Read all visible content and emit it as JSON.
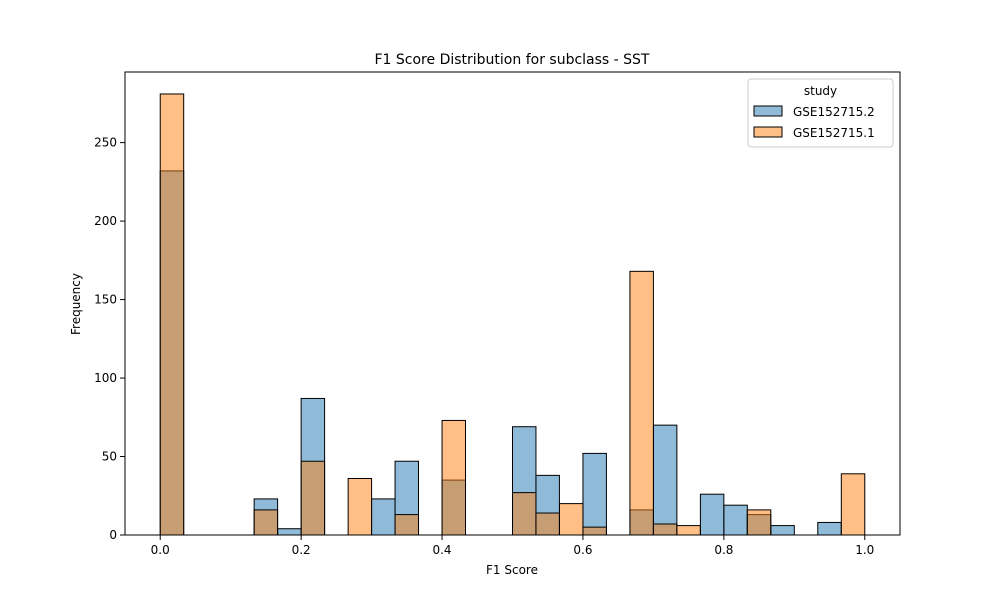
{
  "chart_data": {
    "type": "histogram",
    "title": "F1 Score Distribution for subclass - SST",
    "xlabel": "F1 Score",
    "ylabel": "Frequency",
    "xlim": [
      -0.05,
      1.05
    ],
    "ylim": [
      0,
      295
    ],
    "xticks": [
      "0.0",
      "0.2",
      "0.4",
      "0.6",
      "0.8",
      "1.0"
    ],
    "yticks": [
      "0",
      "50",
      "100",
      "150",
      "200",
      "250"
    ],
    "bin_width": 0.0333,
    "bin_starts": [
      0.0,
      0.0333,
      0.0667,
      0.1,
      0.1333,
      0.1667,
      0.2,
      0.2333,
      0.2667,
      0.3,
      0.3333,
      0.3667,
      0.4,
      0.4333,
      0.4667,
      0.5,
      0.5333,
      0.5667,
      0.6,
      0.6333,
      0.6667,
      0.7,
      0.7333,
      0.7667,
      0.8,
      0.8333,
      0.8667,
      0.9,
      0.9333,
      0.9667
    ],
    "legend": {
      "title": "study",
      "position": "upper right"
    },
    "series": [
      {
        "name": "GSE152715.2",
        "color": "#1f77b4",
        "values": [
          232,
          0,
          0,
          0,
          23,
          4,
          87,
          0,
          0,
          23,
          47,
          0,
          35,
          0,
          0,
          69,
          38,
          0,
          52,
          0,
          16,
          70,
          0,
          26,
          19,
          13,
          6,
          0,
          8,
          0
        ]
      },
      {
        "name": "GSE152715.1",
        "color": "#ff7f0e",
        "values": [
          281,
          0,
          0,
          0,
          16,
          0,
          47,
          0,
          36,
          0,
          13,
          0,
          73,
          0,
          0,
          27,
          14,
          20,
          5,
          0,
          168,
          7,
          6,
          0,
          0,
          16,
          0,
          0,
          0,
          39
        ]
      }
    ]
  }
}
